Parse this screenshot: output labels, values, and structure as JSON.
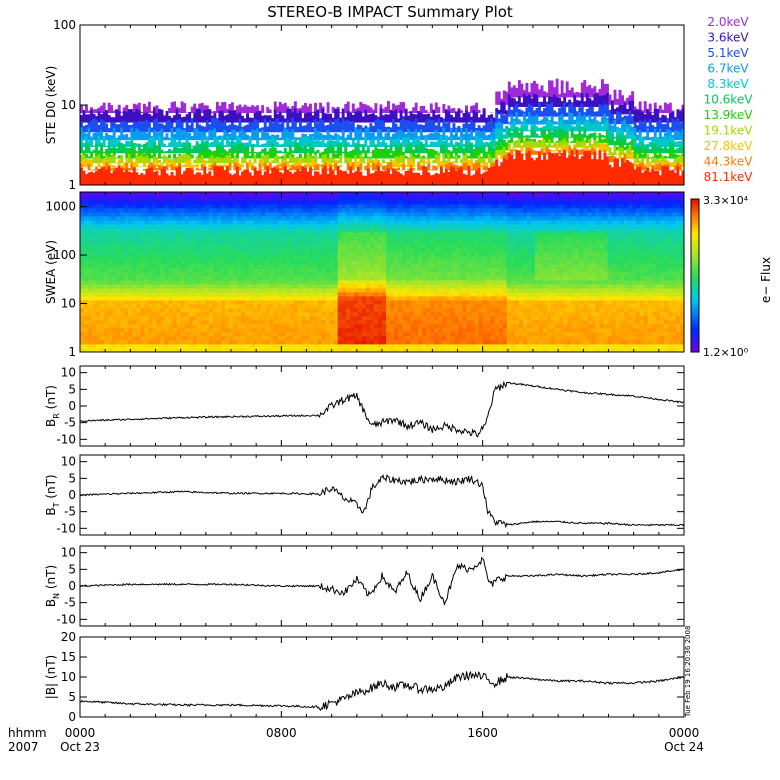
{
  "title": "STEREO-B IMPACT Summary Plot",
  "stamp": "Tue Feb 19 16:20:36 2008",
  "time_axis": {
    "row1_label": "hhmm",
    "row2_label": "2007",
    "ticks": [
      {
        "hour": 0,
        "label": "0000",
        "date": "Oct 23"
      },
      {
        "hour": 8,
        "label": "0800",
        "date": ""
      },
      {
        "hour": 16,
        "label": "1600",
        "date": ""
      },
      {
        "hour": 24,
        "label": "0000",
        "date": "Oct 24"
      }
    ],
    "range_hours": [
      0,
      24
    ]
  },
  "chart_data": [
    {
      "id": "ste",
      "type": "line",
      "ylabel": "STE D0 (keV)",
      "yscale": "log",
      "ylim": [
        1,
        100
      ],
      "yticks": [
        "1",
        "10",
        "100"
      ],
      "legend_position": "right",
      "series": [
        {
          "name": "2.0keV",
          "color": "#9f2bd8",
          "level": 9
        },
        {
          "name": "3.6keV",
          "color": "#3a10c0",
          "level": 7
        },
        {
          "name": "5.1keV",
          "color": "#1b4ff0",
          "level": 5.2
        },
        {
          "name": "6.7keV",
          "color": "#0a9cf0",
          "level": 4.0
        },
        {
          "name": "8.3keV",
          "color": "#00c8c8",
          "level": 3.3
        },
        {
          "name": "10.6keV",
          "color": "#00c85a",
          "level": 2.7
        },
        {
          "name": "13.9keV",
          "color": "#20d000",
          "level": 2.3
        },
        {
          "name": "19.1keV",
          "color": "#a8d800",
          "level": 2.0
        },
        {
          "name": "27.8keV",
          "color": "#ffc000",
          "level": 1.75
        },
        {
          "name": "44.3keV",
          "color": "#ff7a00",
          "level": 1.6
        },
        {
          "name": "81.1keV",
          "color": "#ff2a00",
          "level": 1.45
        }
      ]
    },
    {
      "id": "swea",
      "type": "heatmap",
      "ylabel": "SWEA (eV)",
      "yscale": "log",
      "ylim": [
        1,
        2000
      ],
      "yticks": [
        "1",
        "10",
        "100",
        "1000"
      ],
      "colorbar": {
        "label": "e− Flux",
        "max_label": "3.3×10⁴",
        "min_label": "1.2×10⁰"
      }
    },
    {
      "id": "br",
      "type": "line",
      "ylabel": "B_R (nT)",
      "ylim": [
        -12,
        12
      ],
      "yticks": [
        -10,
        -5,
        0,
        5,
        10
      ],
      "x_hours": [
        0,
        2,
        4,
        6,
        8,
        9.5,
        10,
        10.5,
        11,
        11.3,
        11.6,
        12,
        12.5,
        13,
        13.5,
        14,
        14.5,
        15,
        15.5,
        15.8,
        16.1,
        16.5,
        17,
        18,
        19,
        20,
        21,
        22,
        23,
        24
      ],
      "values": [
        -4.5,
        -4,
        -3.5,
        -3.2,
        -3,
        -2.8,
        0,
        2,
        3,
        -2,
        -6,
        -5,
        -4,
        -6,
        -5,
        -7,
        -6,
        -7,
        -8,
        -8.5,
        -6,
        5,
        7,
        6,
        5,
        4,
        3.5,
        3,
        2,
        1
      ]
    },
    {
      "id": "bt",
      "type": "line",
      "ylabel": "B_T (nT)",
      "ylim": [
        -12,
        12
      ],
      "yticks": [
        -10,
        -5,
        0,
        5,
        10
      ],
      "x_hours": [
        0,
        2,
        4,
        6,
        8,
        9.5,
        10,
        10.5,
        11,
        11.3,
        11.6,
        12,
        13,
        14,
        15,
        15.5,
        16,
        16.2,
        16.5,
        17,
        18,
        19,
        20,
        21,
        22,
        23,
        24
      ],
      "values": [
        0,
        0.5,
        1,
        0.5,
        0.5,
        0.3,
        2,
        -1,
        -3,
        -5,
        2,
        5,
        4,
        5,
        4,
        5,
        3,
        -5,
        -8,
        -9,
        -8,
        -8,
        -8.5,
        -8.5,
        -9,
        -9,
        -9
      ]
    },
    {
      "id": "bn",
      "type": "line",
      "ylabel": "B_N (nT)",
      "ylim": [
        -12,
        12
      ],
      "yticks": [
        -10,
        -5,
        0,
        5,
        10
      ],
      "x_hours": [
        0,
        2,
        4,
        6,
        8,
        9.5,
        10,
        10.5,
        11,
        11.5,
        12,
        12.5,
        13,
        13.5,
        14,
        14.5,
        15,
        15.5,
        16,
        16.3,
        16.6,
        17,
        18,
        19,
        20,
        21,
        22,
        23,
        24
      ],
      "values": [
        0,
        0.5,
        0.5,
        0.5,
        0,
        0,
        -1,
        -2,
        2,
        -3,
        3,
        -2,
        4,
        -4,
        3,
        -5,
        6,
        5,
        8,
        0,
        2,
        3,
        3,
        3.5,
        3,
        3.5,
        3.5,
        4,
        5
      ]
    },
    {
      "id": "bmag",
      "type": "line",
      "ylabel": "|B| (nT)",
      "ylim": [
        0,
        20
      ],
      "yticks": [
        0,
        5,
        10,
        15,
        20
      ],
      "x_hours": [
        0,
        2,
        4,
        6,
        8,
        9.5,
        10,
        10.5,
        11,
        11.5,
        12,
        12.5,
        13,
        13.5,
        14,
        14.5,
        15,
        15.5,
        16,
        16.5,
        17,
        18,
        19,
        20,
        21,
        22,
        23,
        24
      ],
      "values": [
        4,
        3.3,
        3,
        3,
        2.8,
        2.5,
        3.5,
        4.5,
        6,
        7,
        8.5,
        7.5,
        8,
        7,
        7,
        7.5,
        10,
        10.5,
        10,
        8.5,
        10,
        9.5,
        9,
        9,
        8.5,
        8.5,
        9,
        10
      ]
    }
  ]
}
